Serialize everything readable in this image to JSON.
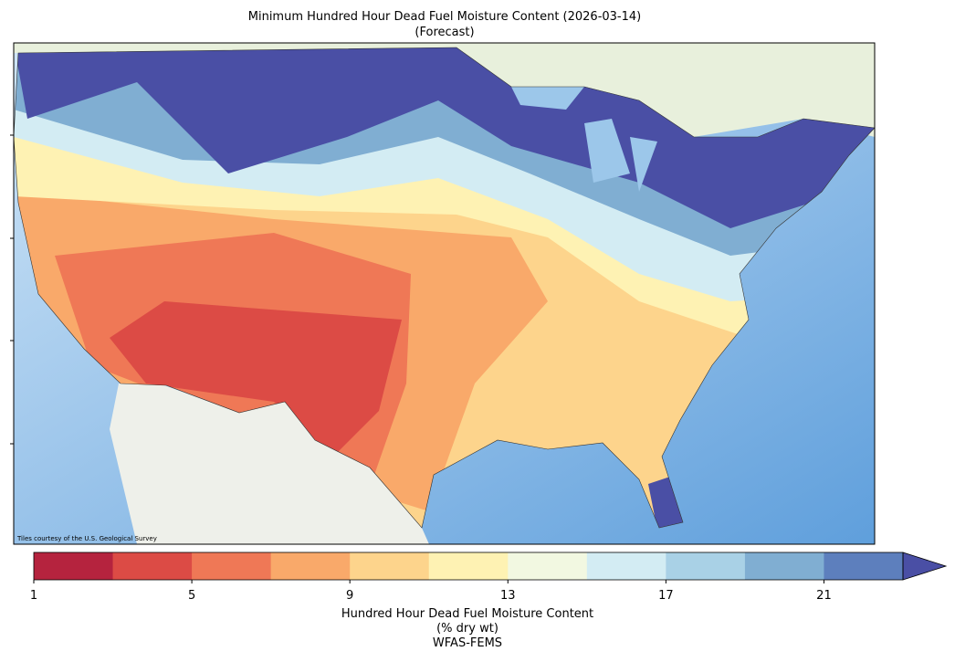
{
  "header": {
    "title": "Minimum Hundred Hour Dead Fuel Moisture Content (2026-03-14)",
    "subtitle": "(Forecast)"
  },
  "map": {
    "attribution": "Tiles courtesy of the U.S. Geological Survey"
  },
  "colorbar": {
    "bounds": [
      1,
      3,
      5,
      7,
      9,
      11,
      13,
      15,
      17,
      19,
      21,
      23
    ],
    "colors": [
      "#b5233e",
      "#dc4b45",
      "#ef7856",
      "#f9a96a",
      "#fdd48c",
      "#fef2b3",
      "#f2f8e1",
      "#d3ecf3",
      "#a9d1e6",
      "#80aed2",
      "#5d7fbd"
    ],
    "extend": "max",
    "extend_color": "#4a4fa5",
    "ticks": [
      1,
      5,
      9,
      13,
      17,
      21
    ],
    "label": [
      "Hundred Hour Dead Fuel Moisture Content",
      "(% dry wt)",
      "WFAS-FEMS"
    ]
  }
}
